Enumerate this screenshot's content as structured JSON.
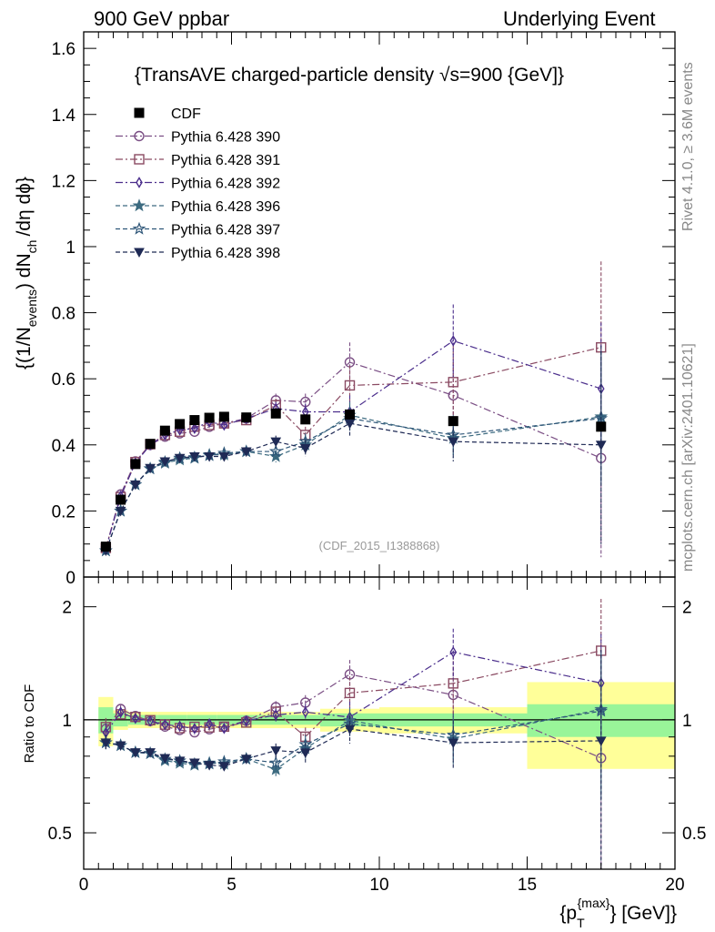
{
  "header": {
    "left": "900 GeV ppbar",
    "right": "Underlying Event"
  },
  "side_labels": {
    "rivet": "Rivet 4.1.0, ≥ 3.6M events",
    "mcplots": "mcplots.cern.ch [arXiv:2401.10621]"
  },
  "chart_data": {
    "type": "scatter",
    "title": "{TransAVE charged-particle density √s=900 {GeV]}",
    "analysis_tag": "(CDF_2015_I1388868)",
    "xlabel": "{p_T^{max}} [GeV]}",
    "xlabel_parts": {
      "base": "{p",
      "sub": "T",
      "sup": "{max}",
      "rest": "} [GeV]}"
    },
    "ylabel": "{(1/N_events) dN_ch /dη dϕ}",
    "ylabel_parts": {
      "p1": "{(1/N",
      "s1": "events",
      "p2": ") dN",
      "s2": "ch",
      "p3": "/dη  dϕ}"
    },
    "ratio_ylabel": "Ratio to CDF",
    "xlim": [
      0,
      20
    ],
    "ylim": [
      0,
      1.65
    ],
    "ratio_ylim": [
      0.4,
      2.4
    ],
    "x_ticks": [
      "0",
      "5",
      "10",
      "15",
      "20"
    ],
    "y_ticks": [
      "0",
      "0.2",
      "0.4",
      "0.6",
      "0.8",
      "1",
      "1.2",
      "1.4",
      "1.6"
    ],
    "ratio_ticks": [
      "0.5",
      "1",
      "2"
    ],
    "x": [
      0.75,
      1.25,
      1.75,
      2.25,
      2.75,
      3.25,
      3.75,
      4.25,
      4.75,
      5.5,
      6.5,
      7.5,
      9.0,
      12.5,
      17.5
    ],
    "cdf": {
      "name": "CDF",
      "values": [
        0.092,
        0.234,
        0.342,
        0.403,
        0.443,
        0.463,
        0.475,
        0.482,
        0.485,
        0.483,
        0.495,
        0.477,
        0.492,
        0.472,
        0.455
      ],
      "band_edges": [
        0.5,
        1.0,
        1.5,
        2.0,
        2.5,
        3.0,
        3.5,
        4.0,
        4.5,
        5.0,
        6.0,
        7.0,
        8.0,
        10.0,
        15.0,
        20.0
      ],
      "band_inner": [
        0.08,
        0.04,
        0.03,
        0.03,
        0.03,
        0.03,
        0.03,
        0.03,
        0.03,
        0.03,
        0.03,
        0.03,
        0.04,
        0.04,
        0.1
      ],
      "band_outer": [
        0.15,
        0.06,
        0.05,
        0.05,
        0.05,
        0.05,
        0.05,
        0.05,
        0.05,
        0.05,
        0.05,
        0.05,
        0.07,
        0.08,
        0.26
      ]
    },
    "series": [
      {
        "name": "Pythia 6.428 390",
        "color": "#7a4e84",
        "marker": "circle",
        "dash": "8,3,2,3",
        "values": [
          0.087,
          0.25,
          0.35,
          0.4,
          0.425,
          0.435,
          0.44,
          0.455,
          0.465,
          0.48,
          0.535,
          0.53,
          0.65,
          0.55,
          0.36
        ],
        "errors": [
          0.005,
          0.006,
          0.006,
          0.006,
          0.006,
          0.007,
          0.008,
          0.009,
          0.01,
          0.012,
          0.02,
          0.025,
          0.06,
          0.1,
          0.3
        ]
      },
      {
        "name": "Pythia 6.428 391",
        "color": "#8a4a62",
        "marker": "square",
        "dash": "8,3,2,3",
        "values": [
          0.088,
          0.242,
          0.348,
          0.402,
          0.43,
          0.44,
          0.455,
          0.46,
          0.465,
          0.475,
          0.52,
          0.43,
          0.58,
          0.59,
          0.695
        ],
        "errors": [
          0.005,
          0.006,
          0.006,
          0.006,
          0.006,
          0.007,
          0.008,
          0.009,
          0.01,
          0.012,
          0.02,
          0.025,
          0.06,
          0.11,
          0.26
        ]
      },
      {
        "name": "Pythia 6.428 392",
        "color": "#4b2e8c",
        "marker": "diamond",
        "dash": "8,3,2,3",
        "values": [
          0.085,
          0.245,
          0.345,
          0.4,
          0.43,
          0.445,
          0.45,
          0.47,
          0.46,
          0.48,
          0.51,
          0.5,
          0.5,
          0.715,
          0.57
        ],
        "errors": [
          0.005,
          0.006,
          0.006,
          0.006,
          0.006,
          0.007,
          0.008,
          0.009,
          0.01,
          0.012,
          0.02,
          0.025,
          0.05,
          0.11,
          0.2
        ]
      },
      {
        "name": "Pythia 6.428 396",
        "color": "#3d6b80",
        "marker": "star",
        "dash": "5,3",
        "values": [
          0.08,
          0.2,
          0.28,
          0.328,
          0.345,
          0.355,
          0.36,
          0.37,
          0.37,
          0.38,
          0.365,
          0.4,
          0.49,
          0.42,
          0.485
        ],
        "errors": [
          0.004,
          0.005,
          0.005,
          0.006,
          0.006,
          0.007,
          0.008,
          0.009,
          0.01,
          0.012,
          0.018,
          0.025,
          0.04,
          0.06,
          0.2
        ]
      },
      {
        "name": "Pythia 6.428 397",
        "color": "#2e5678",
        "marker": "star-open",
        "dash": "5,3",
        "values": [
          0.08,
          0.2,
          0.28,
          0.328,
          0.348,
          0.36,
          0.362,
          0.368,
          0.375,
          0.38,
          0.38,
          0.41,
          0.48,
          0.43,
          0.48
        ],
        "errors": [
          0.004,
          0.005,
          0.005,
          0.006,
          0.006,
          0.007,
          0.008,
          0.009,
          0.01,
          0.012,
          0.018,
          0.025,
          0.04,
          0.06,
          0.2
        ]
      },
      {
        "name": "Pythia 6.428 398",
        "color": "#1f2a55",
        "marker": "triangle-down",
        "dash": "5,3",
        "values": [
          0.08,
          0.2,
          0.28,
          0.33,
          0.35,
          0.36,
          0.365,
          0.365,
          0.365,
          0.38,
          0.41,
          0.39,
          0.465,
          0.41,
          0.4
        ],
        "errors": [
          0.004,
          0.005,
          0.005,
          0.006,
          0.006,
          0.007,
          0.008,
          0.009,
          0.01,
          0.012,
          0.018,
          0.025,
          0.04,
          0.06,
          0.3
        ]
      }
    ]
  }
}
